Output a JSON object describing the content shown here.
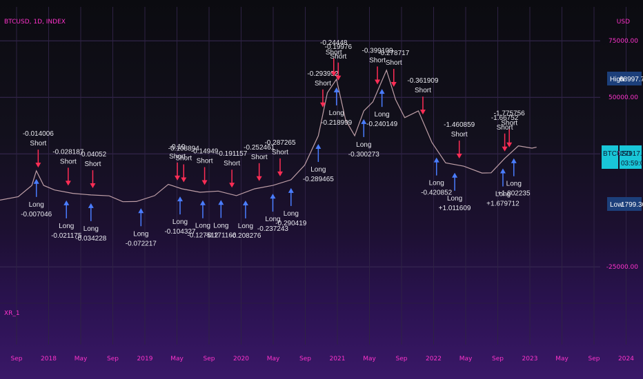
{
  "symbol_title": "BTCUSD, 1D, INDEX",
  "indicator_label": "XR_1",
  "y_axis": {
    "unit_label": "USD",
    "ticks": [
      {
        "label": "75000.00",
        "value": 75000
      },
      {
        "label": "50000.00",
        "value": 50000
      },
      {
        "label": "25000.00",
        "value": 25000
      },
      {
        "label": "-25000.00",
        "value": -25000
      }
    ]
  },
  "price_tags": {
    "high": {
      "label": "High",
      "value": "68997.75"
    },
    "current": {
      "label": "BTCUSD",
      "value": "27917.00",
      "time": "03:59:06"
    },
    "low": {
      "label": "Low",
      "value": "1799.30"
    }
  },
  "x_axis": {
    "ticks": [
      "Sep",
      "2018",
      "May",
      "Sep",
      "2019",
      "May",
      "Sep",
      "2020",
      "May",
      "Sep",
      "2021",
      "May",
      "Sep",
      "2022",
      "May",
      "Sep",
      "2023",
      "May",
      "Sep",
      "2024"
    ]
  },
  "colors": {
    "accent": "#ff33cc",
    "up": "#26a69a",
    "down": "#ef5350",
    "long_arrow": "#4a7dff",
    "short_arrow": "#ff2d55",
    "high_tag": "#1c3f7a",
    "current_tag": "#19c6d8",
    "low_tag": "#1c3f7a"
  },
  "chart_data": {
    "type": "line",
    "y_unit": "USD",
    "ylim": [
      -35000,
      90000
    ],
    "xlim": [
      2017.6,
      2024.2
    ],
    "grid": true,
    "series": [
      {
        "x": [
          2017.6,
          2017.8,
          2017.95,
          2018.0,
          2018.08,
          2018.2,
          2018.4,
          2018.6,
          2018.8,
          2018.95,
          2019.1,
          2019.3,
          2019.45,
          2019.6,
          2019.8,
          2020.0,
          2020.2,
          2020.4,
          2020.6,
          2020.8,
          2020.95,
          2021.1,
          2021.2,
          2021.3,
          2021.4,
          2021.5,
          2021.6,
          2021.7,
          2021.85,
          2021.95,
          2022.05,
          2022.2,
          2022.35,
          2022.5,
          2022.7,
          2022.9,
          2023.0,
          2023.15,
          2023.3,
          2023.45,
          2023.5
        ],
        "y": [
          4500,
          6000,
          11000,
          17500,
          11000,
          9000,
          7500,
          6800,
          6400,
          3800,
          3900,
          6500,
          11500,
          9500,
          8000,
          8500,
          6500,
          9500,
          11000,
          13500,
          20000,
          33000,
          52000,
          58000,
          40000,
          33000,
          44000,
          48000,
          62000,
          49000,
          41000,
          44000,
          30000,
          21000,
          19500,
          16500,
          16600,
          23000,
          28500,
          27500,
          27917
        ]
      }
    ],
    "annotations": [
      {
        "type": "Long",
        "value": "-0.007046",
        "x": 2018.0
      },
      {
        "type": "Short",
        "value": "-0.014006",
        "x": 2018.02
      },
      {
        "type": "Long",
        "value": "-0.021175",
        "x": 2018.33
      },
      {
        "type": "Short",
        "value": "-0.028187",
        "x": 2018.35
      },
      {
        "type": "Long",
        "value": "-0.034228",
        "x": 2018.6
      },
      {
        "type": "Short",
        "value": "-0.04052",
        "x": 2018.62
      },
      {
        "type": "Long",
        "value": "-0.072217",
        "x": 2019.15
      },
      {
        "type": "Short",
        "value": "-0.10",
        "x": 2019.55
      },
      {
        "type": "Short",
        "value": "-0.108894",
        "x": 2019.62
      },
      {
        "type": "Long",
        "value": "-0.104327",
        "x": 2019.58
      },
      {
        "type": "Long",
        "value": "-0.127512",
        "x": 2019.83
      },
      {
        "type": "Short",
        "value": "-0.14949",
        "x": 2019.85
      },
      {
        "type": "Long",
        "value": "-0.171166",
        "x": 2020.03
      },
      {
        "type": "Short",
        "value": "-0.191157",
        "x": 2020.15
      },
      {
        "type": "Long",
        "value": "-0.208276",
        "x": 2020.3
      },
      {
        "type": "Short",
        "value": "-0.252461",
        "x": 2020.45
      },
      {
        "type": "Long",
        "value": "-0.237243",
        "x": 2020.6
      },
      {
        "type": "Short",
        "value": "-0.287265",
        "x": 2020.68
      },
      {
        "type": "Long",
        "value": "-0.290419",
        "x": 2020.8
      },
      {
        "type": "Long",
        "value": "-0.289465",
        "x": 2021.1
      },
      {
        "type": "Short",
        "value": "-0.293952",
        "x": 2021.15
      },
      {
        "type": "Short",
        "value": "-0.24448",
        "x": 2021.27
      },
      {
        "type": "Short",
        "value": "-0.19976",
        "x": 2021.32
      },
      {
        "type": "Long",
        "value": "-0.218999",
        "x": 2021.3
      },
      {
        "type": "Long",
        "value": "-0.300273",
        "x": 2021.6
      },
      {
        "type": "Short",
        "value": "-0.399109",
        "x": 2021.75
      },
      {
        "type": "Long",
        "value": "-0.240149",
        "x": 2021.8
      },
      {
        "type": "Short",
        "value": "-0.278717",
        "x": 2021.93
      },
      {
        "type": "Short",
        "value": "-0.361909",
        "x": 2022.25
      },
      {
        "type": "Long",
        "value": "-0.420852",
        "x": 2022.4
      },
      {
        "type": "Short",
        "value": "-1.460859",
        "x": 2022.65
      },
      {
        "type": "Long",
        "value": "+1.011609",
        "x": 2022.6
      },
      {
        "type": "Long",
        "value": "+1.679712",
        "x": 2023.13
      },
      {
        "type": "Short",
        "value": "-1.66752",
        "x": 2023.15
      },
      {
        "type": "Short",
        "value": "-1.775756",
        "x": 2023.2
      },
      {
        "type": "Long",
        "value": "+1.802235",
        "x": 2023.25
      }
    ]
  }
}
